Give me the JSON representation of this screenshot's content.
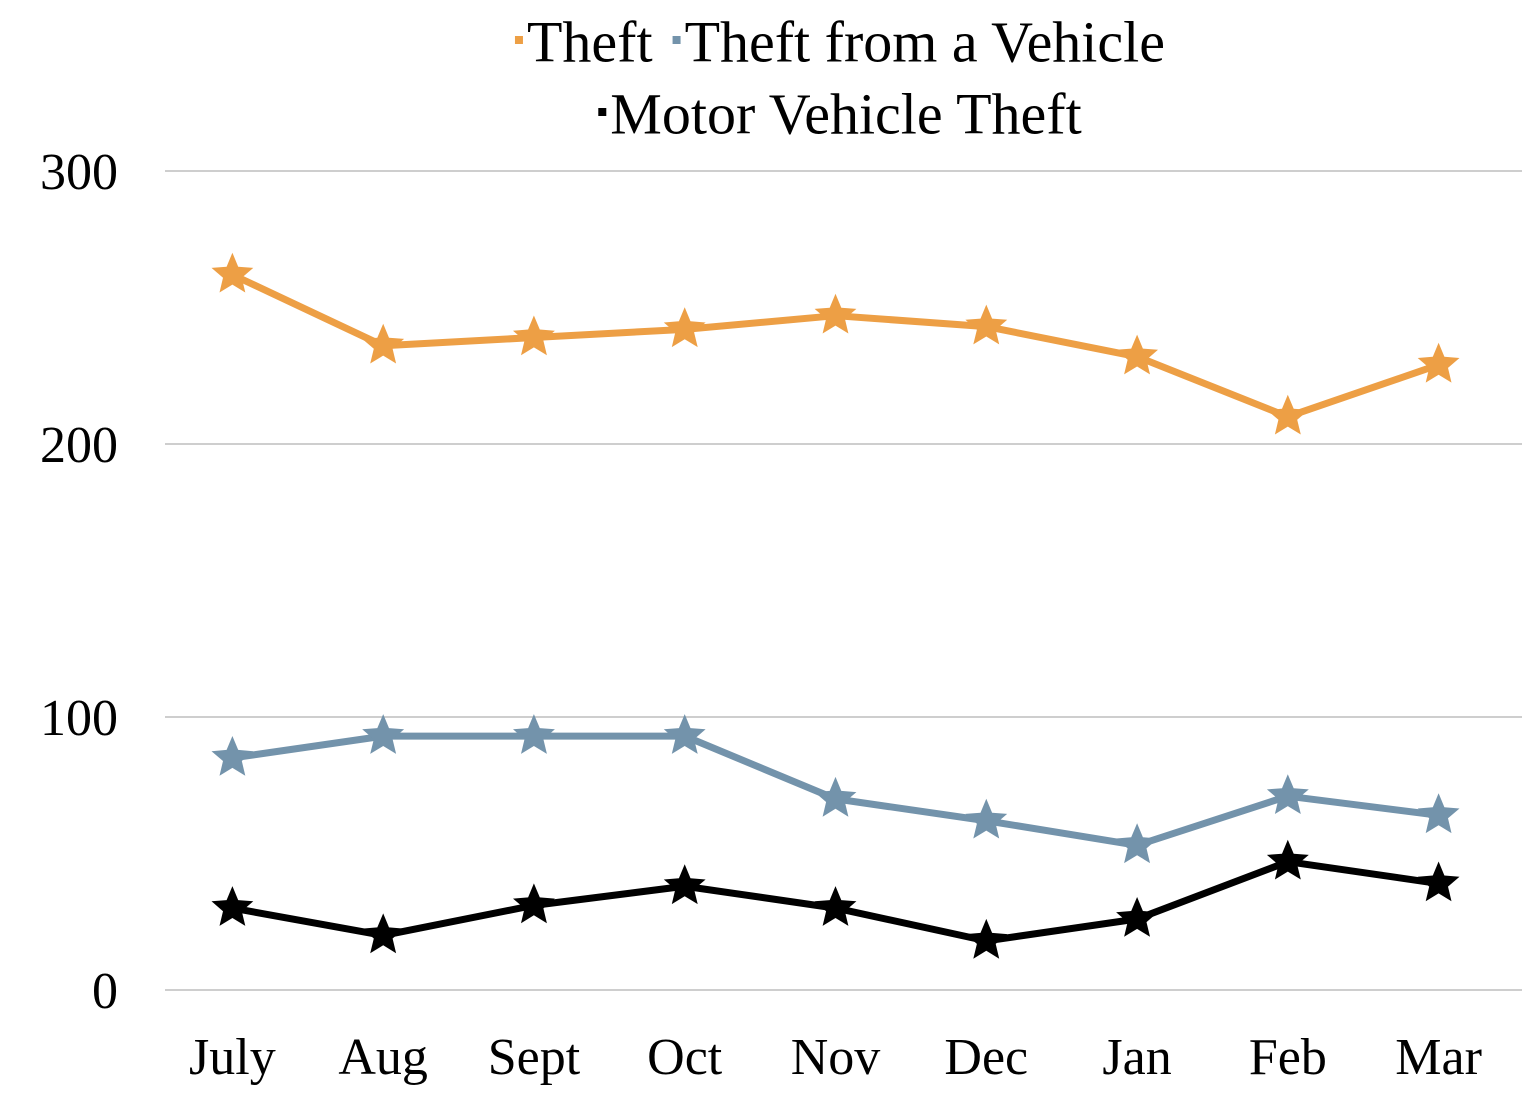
{
  "chart_data": {
    "type": "line",
    "categories": [
      "July",
      "Aug",
      "Sept",
      "Oct",
      "Nov",
      "Dec",
      "Jan",
      "Feb",
      "Mar"
    ],
    "series": [
      {
        "name": "Theft",
        "color": "#ED9F45",
        "values": [
          262,
          236,
          239,
          242,
          247,
          243,
          232,
          210,
          229
        ]
      },
      {
        "name": "Theft from a Vehicle",
        "color": "#7393AB",
        "values": [
          85,
          93,
          93,
          93,
          70,
          62,
          53,
          71,
          64
        ]
      },
      {
        "name": "Motor Vehicle Theft",
        "color": "#000000",
        "values": [
          30,
          20,
          31,
          38,
          30,
          18,
          26,
          47,
          39
        ]
      }
    ],
    "ylim": [
      0,
      300
    ],
    "yticks": [
      0,
      100,
      200,
      300
    ],
    "grid": true,
    "legend": "top",
    "marker": "star"
  }
}
